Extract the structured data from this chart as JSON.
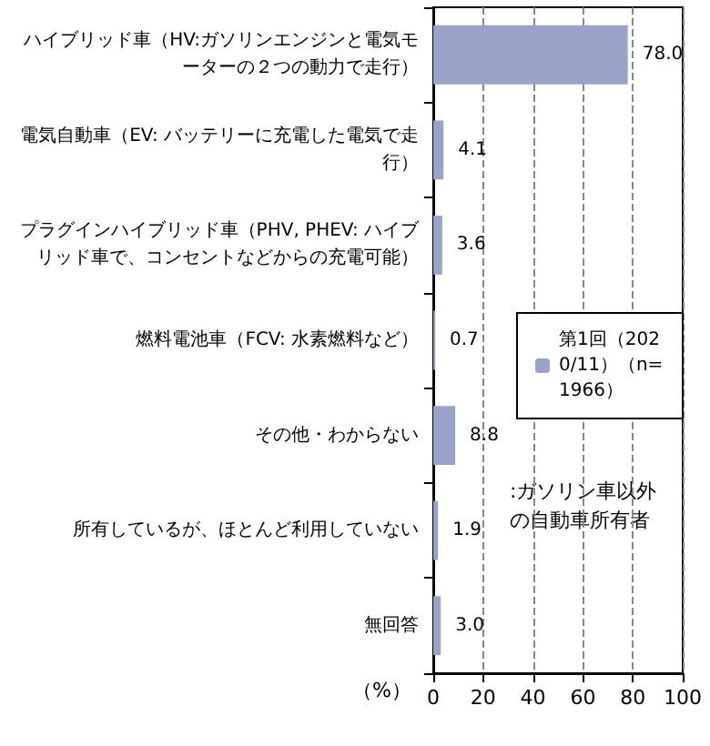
{
  "chart_data": {
    "type": "bar",
    "orientation": "horizontal",
    "categories": [
      "ハイブリッド車（HV:ガソリンエンジンと電気モーターの２つの動力で走行）",
      "電気自動車（EV: バッテリーに充電した電気で走行）",
      "プラグインハイブリッド車（PHV, PHEV: ハイブリッド車で、コンセントなどからの充電可能）",
      "燃料電池車（FCV: 水素燃料など）",
      "その他・わからない",
      "所有しているが、ほとんど利用していない",
      "無回答"
    ],
    "series": [
      {
        "name": "第1回（2020/11）（n=1966）",
        "color": "#99a3c8",
        "values": [
          78.0,
          4.1,
          3.6,
          0.7,
          8.8,
          1.9,
          3.0
        ],
        "value_labels": [
          "78.0",
          "4.1",
          "3.6",
          "0.7",
          "8.8",
          "1.9",
          "3.0"
        ]
      }
    ],
    "xlabel": "（%）",
    "xlim": [
      0,
      100
    ],
    "xticks": [
      0,
      20,
      40,
      60,
      80,
      100
    ],
    "grid": "x",
    "legend": "right",
    "annotations": [
      ":ガソリン車以外の自動車所有者"
    ]
  }
}
